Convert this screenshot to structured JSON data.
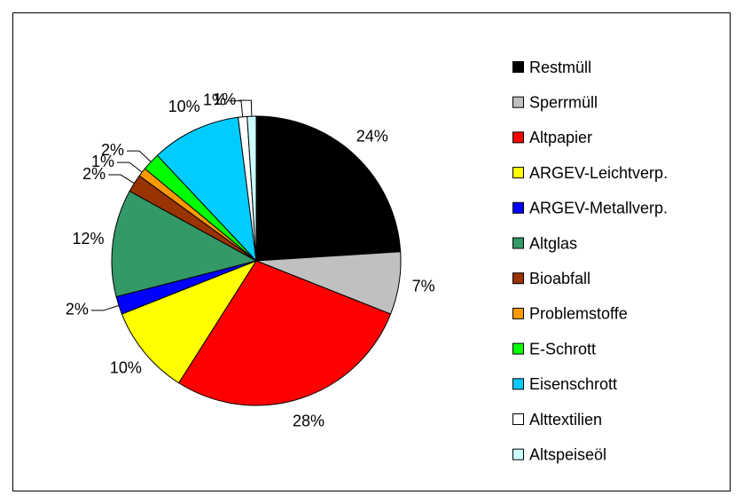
{
  "chart_data": {
    "type": "pie",
    "categories": [
      "Restmüll",
      "Sperrmüll",
      "Altpapier",
      "ARGEV-Leichtverp.",
      "ARGEV-Metallverp.",
      "Altglas",
      "Bioabfall",
      "Problemstoffe",
      "E-Schrott",
      "Eisenschrott",
      "Alttextilien",
      "Altspeiseöl"
    ],
    "values": [
      24,
      7,
      28,
      10,
      2,
      12,
      2,
      1,
      2,
      10,
      1,
      1
    ],
    "value_labels": [
      "24%",
      "7%",
      "28%",
      "10%",
      "2%",
      "12%",
      "2%",
      "1%",
      "2%",
      "10%",
      "1%",
      "1%"
    ],
    "colors": [
      "#000000",
      "#c0c0c0",
      "#ff0000",
      "#ffff00",
      "#0000ff",
      "#339966",
      "#993300",
      "#ff9900",
      "#00ff00",
      "#00ccff",
      "#ffffff",
      "#ccffff"
    ],
    "legend": "right"
  }
}
